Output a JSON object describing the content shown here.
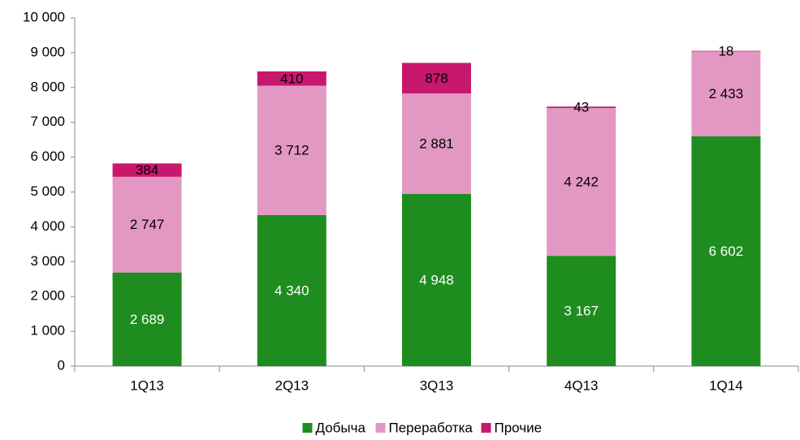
{
  "chart_data": {
    "type": "stacked_bar",
    "categories": [
      "1Q13",
      "2Q13",
      "3Q13",
      "4Q13",
      "1Q14"
    ],
    "series": [
      {
        "name": "Добыча",
        "color": "#1f8c1f",
        "values": [
          2689,
          4340,
          4948,
          3167,
          6602
        ],
        "value_labels": [
          "2 689",
          "4 340",
          "4 948",
          "3 167",
          "6 602"
        ]
      },
      {
        "name": "Переработка",
        "color": "#e298c2",
        "values": [
          2747,
          3712,
          2881,
          4242,
          2433
        ],
        "value_labels": [
          "2 747",
          "3 712",
          "2 881",
          "4 242",
          "2 433"
        ]
      },
      {
        "name": "Прочие",
        "color": "#c8186e",
        "values": [
          384,
          410,
          878,
          43,
          18
        ]
      }
    ],
    "ylim": [
      0,
      10000
    ],
    "yticks": [
      0,
      {
        "value": 1000,
        "label": "1 000"
      },
      {
        "value": 2000,
        "label": "2 000"
      },
      {
        "value": 3000,
        "label": "3 000"
      },
      {
        "value": 4000,
        "label": "4 000"
      },
      {
        "value": 5000,
        "label": "5 000"
      },
      {
        "value": 6000,
        "label": "6 000"
      },
      {
        "value": 7000,
        "label": "7 000"
      },
      {
        "value": 8000,
        "label": "8 000"
      },
      {
        "value": 9000,
        "label": "9 000"
      },
      {
        "value": 10000,
        "label": "10 000"
      }
    ],
    "grid": false,
    "legend": "bottom"
  }
}
